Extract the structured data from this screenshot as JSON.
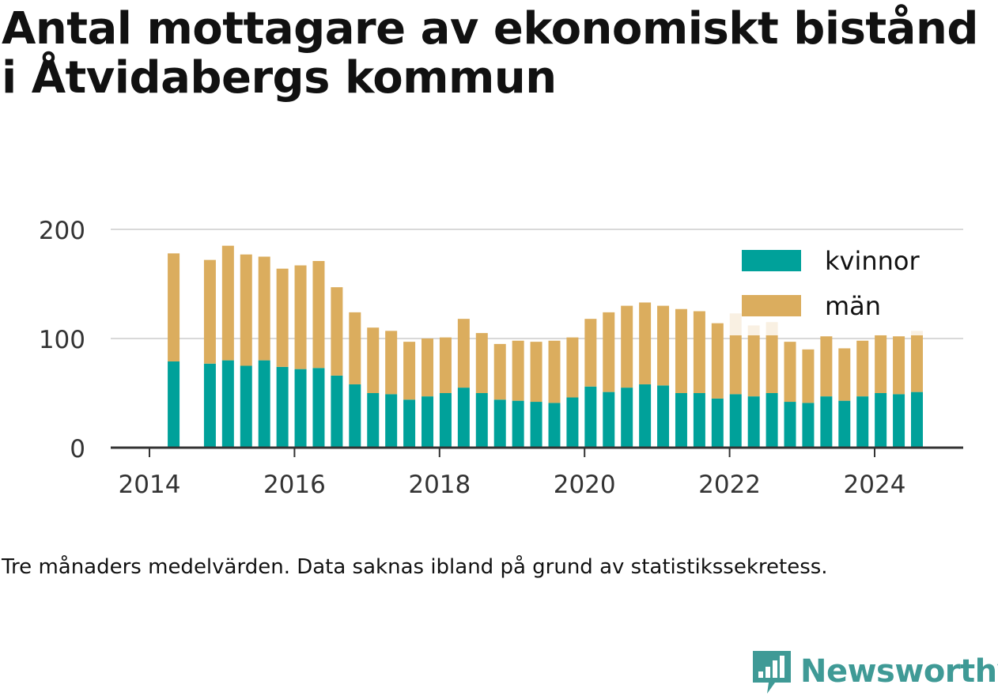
{
  "title": "Antal mottagare av ekonomiskt bistånd i Åtvidabergs kommun",
  "note": "Tre månaders medelvärden. Data saknas ibland på grund av statistikssekretess.",
  "brand": {
    "name": "Newsworthy",
    "icon": "newsworthy-logo-icon",
    "color": "#3f9a96"
  },
  "colors": {
    "kvinnor": "#00a19a",
    "man": "#dbad5e",
    "grid": "#d9d9d9",
    "axis": "#333333"
  },
  "chart_data": {
    "type": "bar",
    "stacked": true,
    "x_ticks": [
      "2014",
      "2016",
      "2018",
      "2020",
      "2022",
      "2024"
    ],
    "y_ticks": [
      "0",
      "100",
      "200"
    ],
    "ylim": [
      0,
      200
    ],
    "legend": [
      "kvinnor",
      "män"
    ],
    "legend_position": "top-right",
    "grid": true,
    "x": [
      "2014-05",
      "2014-11",
      "2015-02",
      "2015-05",
      "2015-08",
      "2015-11",
      "2016-02",
      "2016-05",
      "2016-08",
      "2016-11",
      "2017-02",
      "2017-05",
      "2017-08",
      "2017-11",
      "2018-02",
      "2018-05",
      "2018-08",
      "2018-11",
      "2019-02",
      "2019-05",
      "2019-08",
      "2019-11",
      "2020-02",
      "2020-05",
      "2020-08",
      "2020-11",
      "2021-02",
      "2021-05",
      "2021-08",
      "2021-11",
      "2022-02",
      "2022-05",
      "2022-08",
      "2022-11",
      "2023-02",
      "2023-05",
      "2023-08",
      "2023-11",
      "2024-02",
      "2024-05",
      "2024-08"
    ],
    "series": [
      {
        "name": "kvinnor",
        "values": [
          79,
          77,
          80,
          75,
          80,
          74,
          72,
          73,
          66,
          58,
          50,
          49,
          44,
          47,
          50,
          55,
          50,
          44,
          43,
          42,
          41,
          46,
          56,
          51,
          55,
          58,
          57,
          50,
          50,
          45,
          49,
          47,
          50,
          42,
          41,
          47,
          43,
          47,
          50,
          49,
          51
        ]
      },
      {
        "name": "män",
        "values": [
          99,
          95,
          105,
          102,
          95,
          90,
          95,
          98,
          81,
          66,
          60,
          58,
          53,
          53,
          51,
          63,
          55,
          51,
          55,
          55,
          57,
          55,
          62,
          73,
          75,
          75,
          73,
          77,
          75,
          69,
          74,
          65,
          65,
          55,
          49,
          55,
          48,
          51,
          53,
          53,
          56
        ]
      }
    ]
  }
}
